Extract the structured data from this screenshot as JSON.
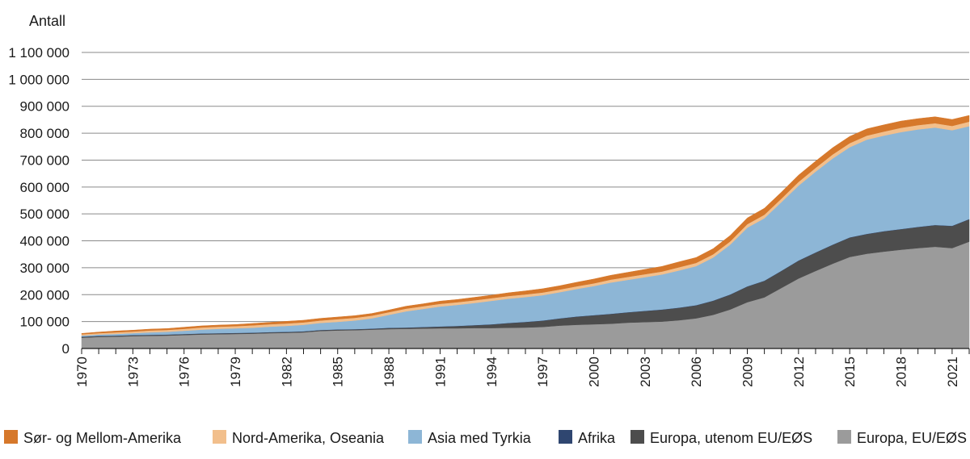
{
  "chart_data": {
    "type": "area",
    "stacked": true,
    "ylabel": "Antall",
    "ylim": [
      0,
      1100000
    ],
    "yticks": [
      0,
      100000,
      200000,
      300000,
      400000,
      500000,
      600000,
      700000,
      800000,
      900000,
      1000000,
      1100000
    ],
    "ytick_labels": [
      "0",
      "100 000",
      "200 000",
      "300 000",
      "400 000",
      "500 000",
      "600 000",
      "700 000",
      "800 000",
      "900 000",
      "1 000 000",
      "1 100 000"
    ],
    "xlim": [
      1970,
      2022
    ],
    "xticks": [
      1970,
      1973,
      1976,
      1979,
      1982,
      1985,
      1988,
      1991,
      1994,
      1997,
      2000,
      2003,
      2006,
      2009,
      2012,
      2015,
      2018,
      2021
    ],
    "grid": "horizontal",
    "legend_position": "bottom",
    "x": [
      1970,
      1971,
      1972,
      1973,
      1974,
      1975,
      1976,
      1977,
      1978,
      1979,
      1980,
      1981,
      1982,
      1983,
      1984,
      1985,
      1986,
      1987,
      1988,
      1989,
      1990,
      1991,
      1992,
      1993,
      1994,
      1995,
      1996,
      1997,
      1998,
      1999,
      2000,
      2001,
      2002,
      2003,
      2004,
      2005,
      2006,
      2007,
      2008,
      2009,
      2010,
      2011,
      2012,
      2013,
      2014,
      2015,
      2016,
      2017,
      2018,
      2019,
      2020,
      2021,
      2022
    ],
    "series": [
      {
        "name": "Europa, EU/EØS",
        "color": "#9b9b9b",
        "values": [
          40000,
          43000,
          44000,
          46000,
          47000,
          48000,
          50000,
          52000,
          53000,
          54000,
          55000,
          57000,
          58000,
          60000,
          65000,
          67000,
          68000,
          70000,
          72000,
          73000,
          74000,
          75000,
          75000,
          76000,
          76000,
          77000,
          78000,
          80000,
          85000,
          88000,
          90000,
          92000,
          96000,
          98000,
          100000,
          105000,
          112000,
          125000,
          145000,
          172000,
          190000,
          225000,
          260000,
          288000,
          315000,
          340000,
          352000,
          360000,
          367000,
          373000,
          378000,
          373000,
          397000
        ]
      },
      {
        "name": "Europa, utenom EU/EØS",
        "color": "#4d4d4d",
        "values": [
          3000,
          3000,
          3000,
          3000,
          3000,
          3000,
          3000,
          3000,
          3000,
          3000,
          3000,
          3000,
          3000,
          3000,
          3000,
          3000,
          3000,
          3000,
          4000,
          4000,
          5000,
          6000,
          8000,
          10000,
          13000,
          17000,
          20000,
          23000,
          26000,
          30000,
          33000,
          36000,
          38000,
          41000,
          44000,
          46000,
          48000,
          52000,
          55000,
          58000,
          61000,
          63000,
          66000,
          68000,
          70000,
          72000,
          73000,
          75000,
          76000,
          78000,
          80000,
          82000,
          83000
        ]
      },
      {
        "name": "Afrika",
        "color": "#2f4670",
        "values": [
          1000,
          1000,
          1000,
          1000,
          1000,
          1000,
          1000,
          1000,
          1000,
          1000,
          1000,
          1000,
          1000,
          1000,
          1000,
          1000,
          1000,
          1000,
          1000,
          1000,
          1000,
          1000,
          1000,
          1000,
          1000,
          1000,
          1000,
          1000,
          1000,
          1000,
          1000,
          1000,
          1000,
          1000,
          1000,
          1000,
          1000,
          1000,
          1000,
          1000,
          1000,
          1000,
          1000,
          1000,
          1000,
          1000,
          1000,
          1000,
          1000,
          1000,
          1000,
          1000,
          1000
        ]
      },
      {
        "name": "Asia med Tyrkia",
        "color": "#8db6d6",
        "values": [
          4000,
          5000,
          6000,
          7000,
          9000,
          10000,
          12000,
          14000,
          16000,
          17000,
          18000,
          20000,
          22000,
          24000,
          26000,
          28000,
          32000,
          38000,
          48000,
          60000,
          67000,
          74000,
          78000,
          82000,
          87000,
          90000,
          92000,
          94000,
          97000,
          102000,
          108000,
          116000,
          120000,
          125000,
          130000,
          138000,
          145000,
          160000,
          185000,
          218000,
          232000,
          255000,
          278000,
          300000,
          320000,
          335000,
          350000,
          355000,
          360000,
          362000,
          362000,
          355000,
          345000
        ]
      },
      {
        "name": "Nord-Amerika, Oseania",
        "color": "#f2bf8c",
        "values": [
          5000,
          5000,
          6000,
          6000,
          7000,
          7000,
          7000,
          8000,
          8000,
          8000,
          9000,
          9000,
          9000,
          9000,
          9000,
          10000,
          10000,
          10000,
          10000,
          10000,
          10000,
          10000,
          10000,
          10000,
          10000,
          10000,
          10000,
          10000,
          10000,
          10000,
          10000,
          11000,
          11000,
          11000,
          11000,
          12000,
          12000,
          12000,
          12000,
          13000,
          13000,
          13000,
          14000,
          14000,
          15000,
          15000,
          15000,
          15000,
          16000,
          16000,
          16000,
          16000,
          17000
        ]
      },
      {
        "name": "Sør- og Mellom-Amerika",
        "color": "#d6782b",
        "values": [
          3000,
          4000,
          5000,
          5000,
          5000,
          5000,
          6000,
          6000,
          6000,
          6000,
          7000,
          7000,
          8000,
          8000,
          8000,
          8000,
          8000,
          8000,
          8000,
          9000,
          9000,
          10000,
          10000,
          11000,
          11000,
          12000,
          13000,
          14000,
          14000,
          15000,
          16000,
          16000,
          17000,
          18000,
          19000,
          20000,
          20000,
          21000,
          22000,
          23000,
          24000,
          24000,
          25000,
          25000,
          25000,
          25000,
          25000,
          25000,
          25000,
          24000,
          24000,
          24000,
          23000
        ]
      }
    ]
  },
  "legend": {
    "order": [
      5,
      4,
      3,
      2,
      1,
      0
    ]
  }
}
